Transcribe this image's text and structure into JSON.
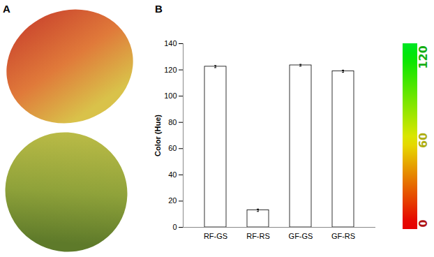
{
  "panels": [
    "A",
    "B"
  ],
  "chart_data": {
    "type": "bar",
    "categories": [
      "RF-GS",
      "RF-RS",
      "GF-GS",
      "GF-RS"
    ],
    "values": [
      122.5,
      13,
      123.5,
      119
    ],
    "errors": [
      0.8,
      0.9,
      0.7,
      0.8
    ],
    "ylabel": "Color (Hue)",
    "ylim": [
      0,
      140
    ],
    "yticks": [
      0,
      20,
      40,
      60,
      80,
      100,
      120,
      140
    ],
    "color": "#ffffff",
    "colorbar": {
      "range": [
        -4,
        130
      ],
      "ticks": [
        0,
        60,
        120
      ]
    }
  }
}
